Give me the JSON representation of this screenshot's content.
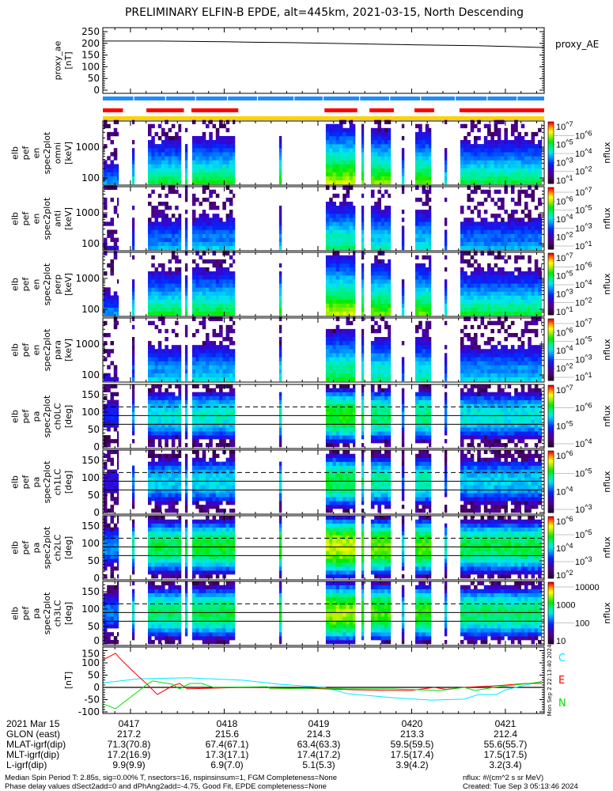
{
  "title": "PRELIMINARY ELFIN-B EPDE, alt=445km, 2021-03-15, North Descending",
  "table": {
    "rows": [
      {
        "label": "2021 Mar 15",
        "values": [
          "0417",
          "0418",
          "0419",
          "0420",
          "0421"
        ]
      },
      {
        "label": "GLON (east)",
        "values": [
          "217.2",
          "215.6",
          "214.3",
          "213.3",
          "212.4"
        ]
      },
      {
        "label": "MLAT-igrf(dip)",
        "values": [
          "71.3(70.8)",
          "67.4(67.1)",
          "63.4(63.3)",
          "59.5(59.5)",
          "55.6(55.7)"
        ]
      },
      {
        "label": "MLT-igrf(dip)",
        "values": [
          "17.2(16.9)",
          "17.3(17.1)",
          "17.4(17.2)",
          "17.5(17.4)",
          "17.5(17.5)"
        ]
      },
      {
        "label": "L-igrf(dip)",
        "values": [
          "9.9(9.9)",
          "6.9(7.0)",
          "5.1(5.3)",
          "3.9(4.2)",
          "3.2(3.4)"
        ]
      }
    ]
  },
  "footer": {
    "line1": "Median Spin Period T: 2.85s, sig=0.00% T, nsectors=16, nspinsinsum=1, FGM Completeness=None",
    "line2": "Phase delay values dSect2add=0 and dPhAng2add=-4.75, Good Fit, EPDE completeness=None",
    "units": "nflux: #/(cm^2 s sr MeV)",
    "created": "Created: Tue Sep  3 05:13:46 2024"
  },
  "side_stamp": "Mon Sep  2 22:13:40 2024",
  "colors": {
    "blue_bar": "#1e8cff",
    "red_bar": "#ff0000",
    "yellow_bar": "#ffd200",
    "C": "#00e8ff",
    "E": "#ff0000",
    "N": "#00e000"
  },
  "chart_data": {
    "type": "heatmap",
    "title": "PRELIMINARY ELFIN-B EPDE, alt=445km, 2021-03-15, North Descending",
    "x_units": "minutes after 04:16 UT",
    "x_range": [
      0.705,
      5.414
    ],
    "x_ticks": [
      1,
      2,
      3,
      4,
      5
    ],
    "x_tick_labels": [
      "0417",
      "0418",
      "0419",
      "0420",
      "0421"
    ],
    "proxy_ae": {
      "label_lines": [
        "proxy_ae",
        "[nT]"
      ],
      "legend": "proxy_AE",
      "ylim": [
        0,
        260
      ],
      "yticks": [
        0,
        50,
        100,
        150,
        200,
        250
      ],
      "t": [
        0.705,
        1.0,
        1.3,
        1.7,
        2.0,
        2.3,
        2.7,
        3.0,
        3.3,
        3.7,
        4.0,
        4.3,
        4.7,
        5.0,
        5.414
      ],
      "values": [
        210,
        210,
        210,
        208,
        207,
        205,
        203,
        201,
        199,
        196,
        194,
        192,
        190,
        187,
        182
      ]
    },
    "orbit_bars": {
      "blue_segments": [
        [
          0.705,
          1.03
        ],
        [
          1.04,
          1.37
        ],
        [
          1.38,
          1.69
        ],
        [
          1.7,
          2.03
        ],
        [
          2.04,
          2.35
        ],
        [
          2.36,
          2.74
        ],
        [
          2.75,
          3.05
        ],
        [
          3.06,
          3.44
        ],
        [
          3.45,
          3.76
        ],
        [
          3.77,
          4.09
        ],
        [
          4.1,
          4.46
        ],
        [
          4.47,
          4.8
        ],
        [
          4.81,
          5.12
        ],
        [
          5.13,
          5.414
        ]
      ],
      "red_segments": [
        [
          0.705,
          0.92
        ],
        [
          1.17,
          1.57
        ],
        [
          1.65,
          2.15
        ],
        [
          3.07,
          3.42
        ],
        [
          3.55,
          3.81
        ],
        [
          4.03,
          4.24
        ],
        [
          4.51,
          5.414
        ]
      ],
      "yellow_segments": [
        [
          0.705,
          5.414
        ]
      ]
    },
    "data_segments": [
      {
        "t": [
          0.713,
          0.873
        ],
        "level": 0.42
      },
      {
        "t": [
          1.017,
          1.042
        ],
        "level": 0.55
      },
      {
        "t": [
          1.186,
          1.54
        ],
        "level": 0.64
      },
      {
        "t": [
          1.582,
          1.608
        ],
        "level": 0.62
      },
      {
        "t": [
          1.658,
          2.114
        ],
        "level": 0.66
      },
      {
        "t": [
          2.586,
          2.612
        ],
        "level": 0.68
      },
      {
        "t": [
          3.084,
          3.397
        ],
        "level": 0.8
      },
      {
        "t": [
          3.464,
          3.489
        ],
        "level": 0.74
      },
      {
        "t": [
          3.565,
          3.776
        ],
        "level": 0.74
      },
      {
        "t": [
          3.894,
          3.92
        ],
        "level": 0.52
      },
      {
        "t": [
          4.038,
          4.207
        ],
        "level": 0.72
      },
      {
        "t": [
          4.35,
          4.376
        ],
        "level": 0.54
      },
      {
        "t": [
          4.519,
          5.388
        ],
        "level": 0.64
      }
    ],
    "energy_panels": [
      {
        "label_lines": [
          "elb",
          "pef",
          "en",
          "spec2plot",
          "omni",
          "[keV]"
        ],
        "ylabel_ticks": [
          "1000",
          "100"
        ],
        "offset": 0.0,
        "colorbar": [
          "10^7",
          "10^6",
          "10^5",
          "10^4",
          "10^3",
          "10^2",
          "10^1"
        ],
        "colorbar_label": "nflux"
      },
      {
        "label_lines": [
          "elb",
          "pef",
          "en",
          "spec2plot",
          "anti",
          "[keV]"
        ],
        "ylabel_ticks": [
          "1000",
          "100"
        ],
        "offset": -0.14,
        "colorbar": [
          "10^7",
          "10^6",
          "10^5",
          "10^4",
          "10^3",
          "10^2",
          "10^1"
        ],
        "colorbar_label": "nflux"
      },
      {
        "label_lines": [
          "elb",
          "pef",
          "en",
          "spec2plot",
          "perp",
          "[keV]"
        ],
        "ylabel_ticks": [
          "1000",
          "100"
        ],
        "offset": 0.0,
        "colorbar": [
          "10^7",
          "10^6",
          "10^5",
          "10^4",
          "10^3",
          "10^2",
          "10^1"
        ],
        "colorbar_label": "nflux"
      },
      {
        "label_lines": [
          "elb",
          "pef",
          "en",
          "spec2plot",
          "para",
          "[keV]"
        ],
        "ylabel_ticks": [
          "1000",
          "100"
        ],
        "offset": -0.1,
        "colorbar": [
          "10^7",
          "10^6",
          "10^5",
          "10^4",
          "10^3",
          "10^2",
          "10^1"
        ],
        "colorbar_label": "nflux"
      }
    ],
    "pa_panels": [
      {
        "label_lines": [
          "elb",
          "pef",
          "pa",
          "spec2plot",
          "ch0LC",
          "[deg]"
        ],
        "ylim": [
          0,
          180
        ],
        "yticks": [
          "0",
          "50",
          "100",
          "150"
        ],
        "offset": -0.12,
        "colorbar": [
          "10^7",
          "10^6",
          "10^5",
          "10^4"
        ],
        "colorbar_label": "nflux"
      },
      {
        "label_lines": [
          "elb",
          "pef",
          "pa",
          "spec2plot",
          "ch1LC",
          "[deg]"
        ],
        "ylim": [
          0,
          180
        ],
        "yticks": [
          "0",
          "50",
          "100",
          "150"
        ],
        "offset": -0.16,
        "colorbar": [
          "10^6",
          "10^5",
          "10^4",
          "10^3"
        ],
        "colorbar_label": "nflux"
      },
      {
        "label_lines": [
          "elb",
          "pef",
          "pa",
          "spec2plot",
          "ch2LC",
          "[deg]"
        ],
        "ylim": [
          0,
          180
        ],
        "yticks": [
          "0",
          "50",
          "100",
          "150"
        ],
        "offset": 0.0,
        "colorbar": [
          "10^6",
          "10^5",
          "10^4",
          "10^3",
          "10^2"
        ],
        "colorbar_label": "nflux"
      },
      {
        "label_lines": [
          "elb",
          "pef",
          "pa",
          "spec2plot",
          "ch3LC",
          "[deg]"
        ],
        "ylim": [
          0,
          180
        ],
        "yticks": [
          "0",
          "50",
          "100",
          "150"
        ],
        "offset": -0.03,
        "colorbar": [
          "10000",
          "1000",
          "100",
          "10"
        ],
        "colorbar_label": "nflux"
      }
    ],
    "pa_reference_lines": {
      "solid": [
        90,
        65
      ],
      "dashed": [
        115
      ]
    },
    "bfield": {
      "label_lines": [
        "[nT]"
      ],
      "ylim": [
        -110,
        152
      ],
      "yticks": [
        -100,
        -50,
        0,
        50,
        100,
        150
      ],
      "series": [
        {
          "name": "C",
          "color": "#00e8ff",
          "t": [
            0.713,
            1.093,
            1.608,
            2.207,
            2.586,
            3.068,
            3.321,
            3.793,
            4.207,
            4.561,
            4.713,
            4.907,
            5.0,
            5.388
          ],
          "values": [
            19,
            35,
            39,
            29,
            13,
            0,
            -26,
            -42,
            -52,
            -48,
            -29,
            -29,
            -10,
            25
          ]
        },
        {
          "name": "E",
          "color": "#ff0000",
          "t": [
            0.713,
            0.84,
            0.907,
            1.093,
            1.177,
            1.287,
            1.447,
            1.523,
            1.608,
            2.2,
            2.814,
            3.405,
            3.987,
            4.241,
            4.367,
            4.561,
            4.873,
            5.228,
            5.388
          ],
          "values": [
            113,
            139,
            110,
            42,
            13,
            -29,
            6,
            16,
            -6,
            0,
            -3,
            -10,
            -13,
            0,
            -8,
            0,
            6,
            16,
            16
          ]
        },
        {
          "name": "N",
          "color": "#00e000",
          "t": [
            0.713,
            0.84,
            1.093,
            1.177,
            1.236,
            1.447,
            1.523,
            1.633,
            1.759,
            1.886,
            2.46,
            2.494,
            3.034,
            3.321,
            3.793,
            4.3,
            4.561,
            4.679,
            4.873,
            5.388
          ],
          "values": [
            -68,
            -87,
            -13,
            13,
            26,
            13,
            -6,
            16,
            16,
            0,
            3,
            -6,
            -3,
            -6,
            -6,
            -13,
            0,
            -13,
            0,
            22
          ]
        }
      ]
    }
  }
}
